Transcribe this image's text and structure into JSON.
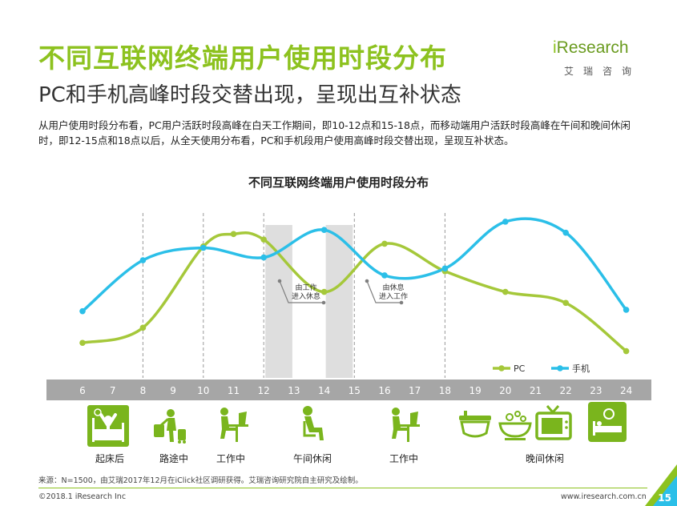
{
  "header": {
    "title": "不同互联网终端用户使用时段分布",
    "subtitle": "PC和手机高峰时段交替出现，呈现出互补状态",
    "description": "从用户使用时段分布看，PC用户活跃时段高峰在白天工作期间，即10-12点和15-18点，而移动端用户活跃时段高峰在午间和晚间休闲时，即12-15点和18点以后，从全天使用分布看，PC和手机段用户使用高峰时段交替出现，呈现互补状态。"
  },
  "logo": {
    "i": "i",
    "name": "Research",
    "sub": "艾瑞咨询"
  },
  "colors": {
    "pc": "#a5c83a",
    "mobile": "#2bbfe8",
    "brand": "#8dc21f",
    "axis": "#a6a6a6",
    "shade": "#dedede",
    "icon_green": "#7ab51d"
  },
  "chart_data": {
    "type": "line",
    "title": "不同互联网终端用户使用时段分布",
    "categories": [
      "6",
      "7",
      "8",
      "9",
      "10",
      "11",
      "12",
      "13",
      "14",
      "15",
      "16",
      "17",
      "18",
      "19",
      "20",
      "21",
      "22",
      "23",
      "24"
    ],
    "series": [
      {
        "name": "PC",
        "x": [
          6,
          8,
          10,
          11,
          12,
          14,
          16,
          18,
          20,
          22,
          24
        ],
        "values": [
          8,
          19,
          78,
          87,
          83,
          45,
          80,
          60,
          45,
          37,
          2
        ]
      },
      {
        "name": "手机",
        "x": [
          6,
          8,
          10,
          12,
          14,
          16,
          18,
          20,
          22,
          24
        ],
        "values": [
          31,
          68,
          77,
          70,
          90,
          57,
          62,
          96,
          88,
          32
        ]
      }
    ],
    "ylim": [
      0,
      100
    ],
    "xlabel": "",
    "ylabel": "",
    "legend": "bottom-right",
    "shaded_ranges": [
      [
        12,
        13
      ],
      [
        14,
        15
      ]
    ],
    "dashed_dividers": [
      8,
      10,
      12,
      15,
      18
    ],
    "annotations": [
      {
        "line1": "由工作",
        "line2": "进入休息"
      },
      {
        "line1": "由休息",
        "line2": "进入工作"
      }
    ],
    "activities": [
      {
        "label": "起床后",
        "icon": "wake-up-icon"
      },
      {
        "label": "路途中",
        "icon": "commute-icon"
      },
      {
        "label": "工作中",
        "icon": "work-desk-icon"
      },
      {
        "label": "午间休闲",
        "icon": "lunch-rest-icon"
      },
      {
        "label": "工作中",
        "icon": "work-desk-icon"
      },
      {
        "label": "晚间休闲",
        "icon": "evening-leisure-icon"
      }
    ]
  },
  "footer": {
    "source": "来源：N=1500，由艾瑞2017年12月在iClick社区调研获得。艾瑞咨询研究院自主研究及绘制。",
    "copyright": "©2018.1 iResearch Inc",
    "website": "www.iresearch.com.cn",
    "page": "15"
  }
}
